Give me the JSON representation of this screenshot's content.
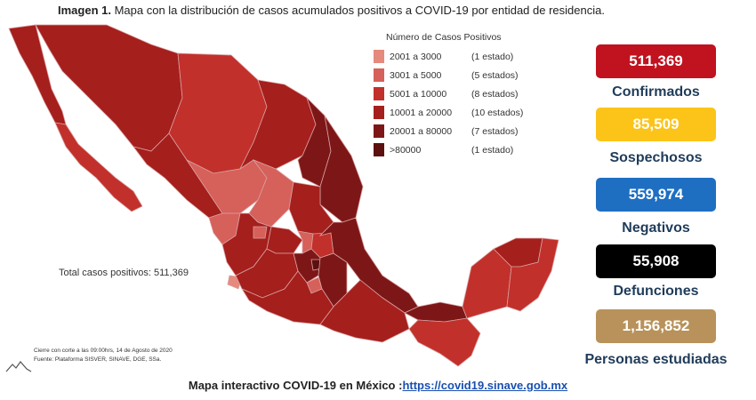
{
  "header": {
    "label": "Imagen 1.",
    "text": "Mapa con la distribución de casos acumulados positivos a COVID-19 por entidad de residencia."
  },
  "legend": {
    "title": "Número de Casos Positivos",
    "items": [
      {
        "range": "2001 a 3000",
        "count": "(1 estado)",
        "color": "#e58a7c"
      },
      {
        "range": "3001 a 5000",
        "count": "(5 estados)",
        "color": "#d6605a"
      },
      {
        "range": "5001 a 10000",
        "count": "(8 estados)",
        "color": "#c2302b"
      },
      {
        "range": "10001 a 20000",
        "count": "(10 estados)",
        "color": "#a51f1d"
      },
      {
        "range": "20001 a 80000",
        "count": "(7 estados)",
        "color": "#7d1717"
      },
      {
        "range": ">80000",
        "count": "(1 estado)",
        "color": "#5c1010"
      }
    ]
  },
  "total_label": "Total casos positivos: 511,369",
  "cutoff_text": "Cierre con corte a las 09:00hrs, 14 de Agosto de 2020",
  "source_text": "Fuente: Plataforma SISVER, SINAVE, DGE, SSa.",
  "stats": [
    {
      "value": "511,369",
      "label": "Confirmados",
      "color": "#c1121f"
    },
    {
      "value": "85,509",
      "label": "Sospechosos",
      "color": "#fcc419"
    },
    {
      "value": "559,974",
      "label": "Negativos",
      "color": "#1e6fc2"
    },
    {
      "value": "55,908",
      "label": "Defunciones",
      "color": "#000000"
    },
    {
      "value": "1,156,852",
      "label": "Personas estudiadas",
      "color": "#b8925a"
    }
  ],
  "footer": {
    "text": "Mapa interactivo COVID-19 en México :",
    "link": "https://covid19.sinave.gob.mx"
  }
}
